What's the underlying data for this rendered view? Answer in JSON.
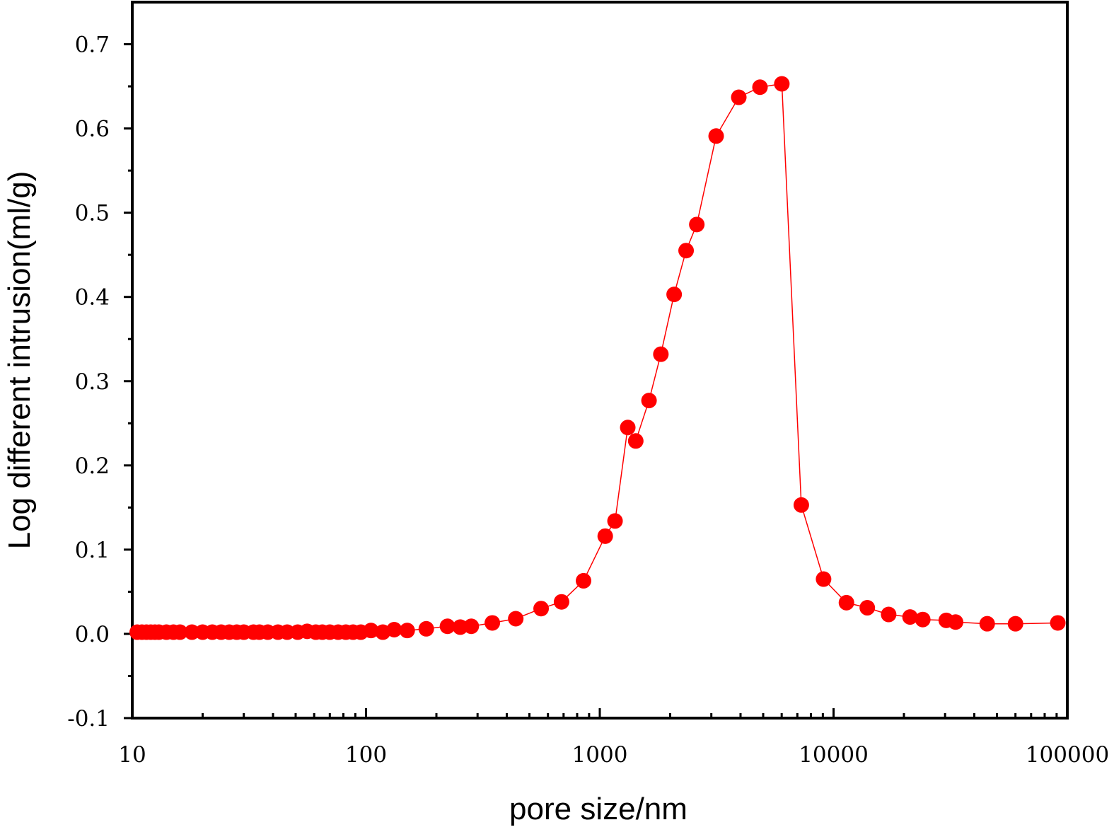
{
  "chart_data": {
    "type": "scatter",
    "title": "",
    "xlabel": "pore size/nm",
    "ylabel": "Log different intrusion(ml/g)",
    "x_scale": "log",
    "xlim": [
      10,
      100000
    ],
    "ylim": [
      -0.1,
      0.75
    ],
    "x_ticks": [
      10,
      100,
      1000,
      10000,
      100000
    ],
    "x_tick_labels": [
      "10",
      "100",
      "1000",
      "10000",
      "100000"
    ],
    "y_ticks": [
      -0.1,
      0.0,
      0.1,
      0.2,
      0.3,
      0.4,
      0.5,
      0.6,
      0.7
    ],
    "y_tick_labels": [
      "-0.1",
      "0.0",
      "0.1",
      "0.2",
      "0.3",
      "0.4",
      "0.5",
      "0.6",
      "0.7"
    ],
    "grid": false,
    "legend": "none",
    "color": "#ff0000",
    "series": [
      {
        "x": [
          10.5,
          11,
          11.5,
          12,
          12.5,
          13,
          14,
          15,
          16,
          18,
          20,
          22,
          24,
          26,
          28,
          30,
          33,
          35,
          38,
          42,
          46,
          51,
          56,
          61,
          65,
          70,
          76,
          82,
          88,
          95,
          105,
          118,
          132,
          150,
          181,
          223,
          253,
          282,
          347,
          437,
          561,
          686,
          852,
          1055,
          1162,
          1317,
          1425,
          1624,
          1825,
          2080,
          2340,
          2600,
          3146,
          3932,
          4845,
          6008,
          7279,
          9063,
          11354,
          13942,
          17205,
          21247,
          24078,
          30350,
          33265,
          45420,
          60018,
          91052
        ],
        "y": [
          0.002,
          0.002,
          0.002,
          0.002,
          0.002,
          0.002,
          0.002,
          0.002,
          0.002,
          0.002,
          0.002,
          0.002,
          0.002,
          0.002,
          0.002,
          0.002,
          0.002,
          0.002,
          0.002,
          0.002,
          0.002,
          0.002,
          0.003,
          0.002,
          0.002,
          0.002,
          0.002,
          0.002,
          0.002,
          0.002,
          0.004,
          0.002,
          0.005,
          0.004,
          0.006,
          0.009,
          0.008,
          0.009,
          0.013,
          0.018,
          0.03,
          0.038,
          0.063,
          0.116,
          0.134,
          0.245,
          0.229,
          0.277,
          0.332,
          0.403,
          0.455,
          0.486,
          0.591,
          0.637,
          0.649,
          0.653,
          0.153,
          0.065,
          0.037,
          0.031,
          0.023,
          0.02,
          0.017,
          0.016,
          0.014,
          0.012,
          0.012,
          0.013
        ]
      }
    ]
  }
}
